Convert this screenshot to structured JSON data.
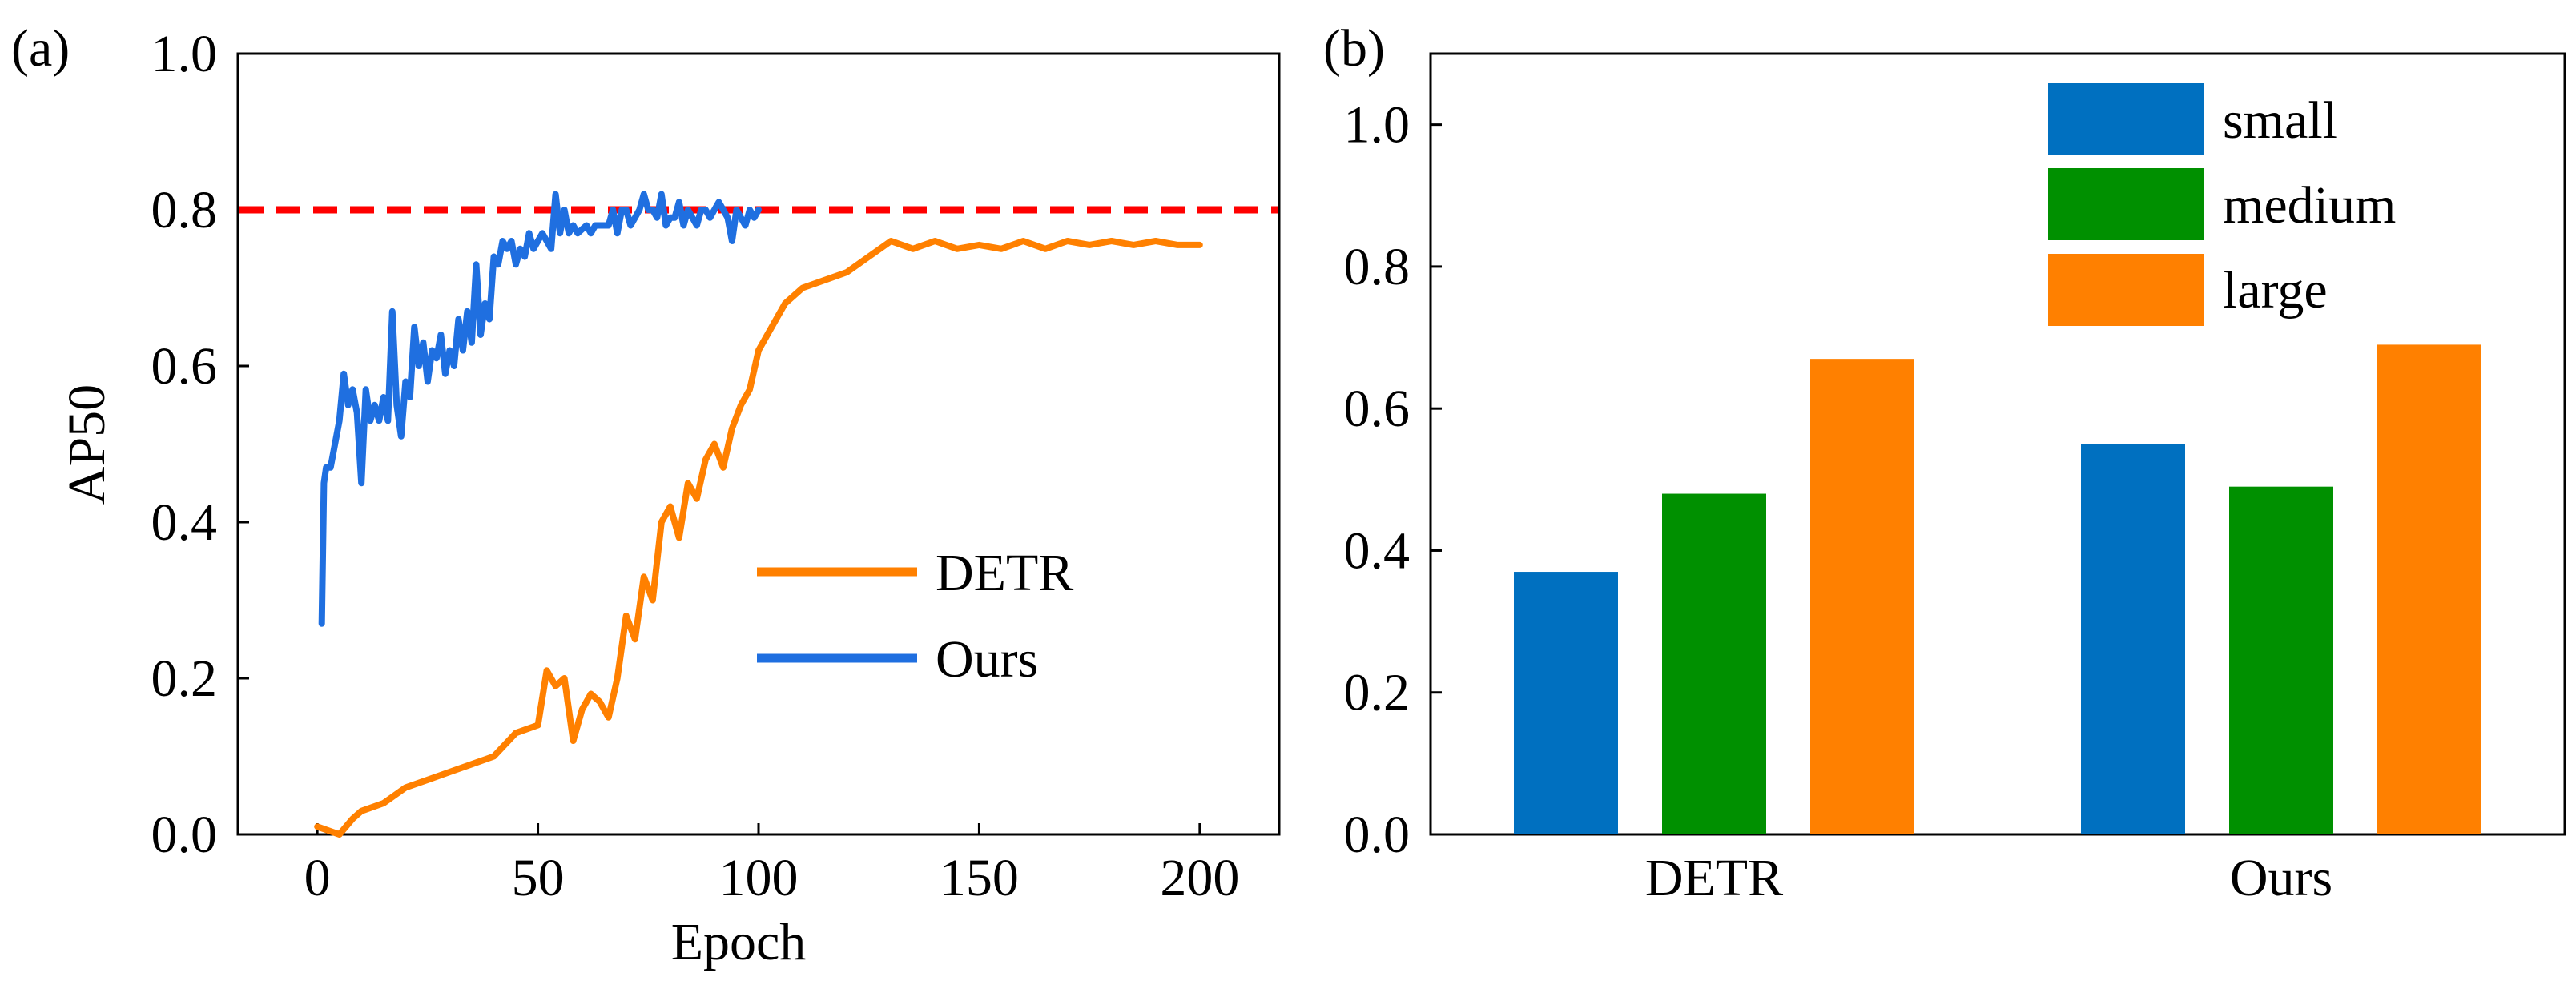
{
  "panel_a": {
    "label": "(a)",
    "xlabel": "Epoch",
    "ylabel": "AP50",
    "xticks": [
      "0",
      "50",
      "100",
      "150",
      "200"
    ],
    "yticks": [
      "0.0",
      "0.2",
      "0.4",
      "0.6",
      "0.8",
      "1.0"
    ],
    "legend": [
      "DETR",
      "Ours"
    ]
  },
  "panel_b": {
    "label": "(b)",
    "categories": [
      "DETR",
      "Ours"
    ],
    "yticks": [
      "0.0",
      "0.2",
      "0.4",
      "0.6",
      "0.8",
      "1.0"
    ],
    "legend": [
      "small",
      "medium",
      "large"
    ]
  },
  "chart_data": [
    {
      "type": "line",
      "xlabel": "Epoch",
      "ylabel": "AP50",
      "xlim": [
        -18,
        218
      ],
      "ylim": [
        0,
        1.0
      ],
      "grid": false,
      "legend_position": "bottom-right",
      "reference_line": {
        "y": 0.8,
        "color": "#ff0000",
        "style": "dashed"
      },
      "series": [
        {
          "name": "DETR",
          "color": "#ff8000",
          "x": [
            0,
            5,
            8,
            10,
            15,
            20,
            25,
            30,
            35,
            40,
            45,
            50,
            52,
            54,
            56,
            58,
            60,
            62,
            64,
            66,
            68,
            70,
            72,
            74,
            76,
            78,
            80,
            82,
            84,
            86,
            88,
            90,
            92,
            94,
            96,
            98,
            100,
            103,
            106,
            110,
            115,
            120,
            125,
            130,
            135,
            140,
            145,
            150,
            155,
            160,
            165,
            170,
            175,
            180,
            185,
            190,
            195,
            200
          ],
          "y": [
            0.01,
            0.0,
            0.02,
            0.03,
            0.04,
            0.06,
            0.07,
            0.08,
            0.09,
            0.1,
            0.13,
            0.14,
            0.21,
            0.19,
            0.2,
            0.12,
            0.16,
            0.18,
            0.17,
            0.15,
            0.2,
            0.28,
            0.25,
            0.33,
            0.3,
            0.4,
            0.42,
            0.38,
            0.45,
            0.43,
            0.48,
            0.5,
            0.47,
            0.52,
            0.55,
            0.57,
            0.62,
            0.65,
            0.68,
            0.7,
            0.71,
            0.72,
            0.74,
            0.76,
            0.75,
            0.76,
            0.75,
            0.755,
            0.75,
            0.76,
            0.75,
            0.76,
            0.755,
            0.76,
            0.755,
            0.76,
            0.755,
            0.755
          ]
        },
        {
          "name": "Ours",
          "color": "#1f6fe0",
          "x": [
            1,
            1.5,
            2,
            3,
            4,
            5,
            6,
            7,
            8,
            9,
            10,
            11,
            12,
            13,
            14,
            15,
            16,
            17,
            18,
            19,
            20,
            21,
            22,
            23,
            24,
            25,
            26,
            27,
            28,
            29,
            30,
            31,
            32,
            33,
            34,
            35,
            36,
            37,
            38,
            39,
            40,
            41,
            42,
            43,
            44,
            45,
            46,
            47,
            48,
            49,
            50,
            51,
            52,
            53,
            54,
            55,
            56,
            57,
            58,
            59,
            60,
            61,
            62,
            63,
            64,
            65,
            66,
            67,
            68,
            69,
            70,
            71,
            72,
            73,
            74,
            75,
            76,
            77,
            78,
            79,
            80,
            81,
            82,
            83,
            84,
            85,
            86,
            87,
            88,
            89,
            90,
            91,
            92,
            93,
            94,
            95,
            96,
            97,
            98,
            99,
            100
          ],
          "y": [
            0.27,
            0.45,
            0.47,
            0.47,
            0.5,
            0.53,
            0.59,
            0.55,
            0.57,
            0.54,
            0.45,
            0.57,
            0.53,
            0.55,
            0.53,
            0.56,
            0.53,
            0.67,
            0.55,
            0.51,
            0.58,
            0.56,
            0.65,
            0.6,
            0.63,
            0.58,
            0.62,
            0.61,
            0.64,
            0.59,
            0.62,
            0.6,
            0.66,
            0.62,
            0.67,
            0.63,
            0.73,
            0.64,
            0.68,
            0.66,
            0.74,
            0.73,
            0.76,
            0.75,
            0.76,
            0.73,
            0.75,
            0.74,
            0.77,
            0.75,
            0.76,
            0.77,
            0.76,
            0.75,
            0.82,
            0.77,
            0.8,
            0.77,
            0.78,
            0.77,
            0.775,
            0.78,
            0.77,
            0.78,
            0.78,
            0.78,
            0.78,
            0.8,
            0.77,
            0.8,
            0.8,
            0.78,
            0.79,
            0.8,
            0.82,
            0.8,
            0.8,
            0.79,
            0.82,
            0.78,
            0.79,
            0.79,
            0.81,
            0.78,
            0.8,
            0.79,
            0.78,
            0.8,
            0.8,
            0.79,
            0.8,
            0.81,
            0.8,
            0.79,
            0.76,
            0.8,
            0.79,
            0.78,
            0.8,
            0.79,
            0.8
          ]
        }
      ]
    },
    {
      "type": "bar",
      "categories": [
        "DETR",
        "Ours"
      ],
      "ylim": [
        0,
        1.1
      ],
      "grid": false,
      "legend_position": "top-right",
      "series": [
        {
          "name": "small",
          "color": "#0070c0",
          "values": [
            0.37,
            0.55
          ]
        },
        {
          "name": "medium",
          "color": "#009000",
          "values": [
            0.48,
            0.49
          ]
        },
        {
          "name": "large",
          "color": "#ff8000",
          "values": [
            0.67,
            0.69
          ]
        }
      ]
    }
  ]
}
